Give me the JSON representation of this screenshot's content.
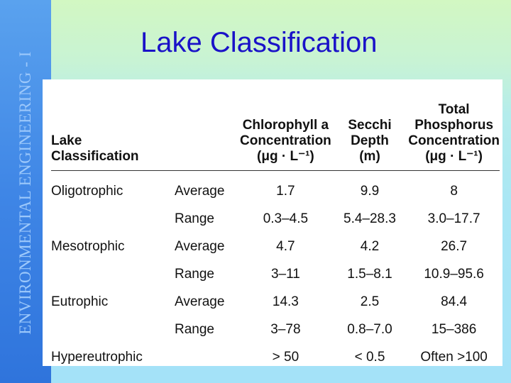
{
  "sidebar": {
    "text": "ENVIRONMENTAL ENGINEERING - I"
  },
  "title": "Lake Classification",
  "table": {
    "headers": {
      "classification": "Lake Classification",
      "stat": "",
      "chlorophyll": [
        "Chlorophyll a",
        "Concentration",
        "(μg · L⁻¹)"
      ],
      "secchi": [
        "Secchi Depth",
        "(m)"
      ],
      "phosphorus": [
        "Total",
        "Phosphorus",
        "Concentration",
        "(μg · L⁻¹)"
      ]
    },
    "rows": [
      {
        "classification": "Oligotrophic",
        "stat": "Average",
        "chlorophyll": "1.7",
        "secchi": "9.9",
        "phosphorus": "8"
      },
      {
        "classification": "",
        "stat": "Range",
        "chlorophyll": "0.3–4.5",
        "secchi": "5.4–28.3",
        "phosphorus": "3.0–17.7"
      },
      {
        "classification": "Mesotrophic",
        "stat": "Average",
        "chlorophyll": "4.7",
        "secchi": "4.2",
        "phosphorus": "26.7"
      },
      {
        "classification": "",
        "stat": "Range",
        "chlorophyll": "3–11",
        "secchi": "1.5–8.1",
        "phosphorus": "10.9–95.6"
      },
      {
        "classification": "Eutrophic",
        "stat": "Average",
        "chlorophyll": "14.3",
        "secchi": "2.5",
        "phosphorus": "84.4"
      },
      {
        "classification": "",
        "stat": "Range",
        "chlorophyll": "3–78",
        "secchi": "0.8–7.0",
        "phosphorus": "15–386"
      },
      {
        "classification": "Hypereutrophic",
        "stat": "",
        "chlorophyll": "> 50",
        "secchi": "< 0.5",
        "phosphorus": "Often >100"
      }
    ]
  }
}
